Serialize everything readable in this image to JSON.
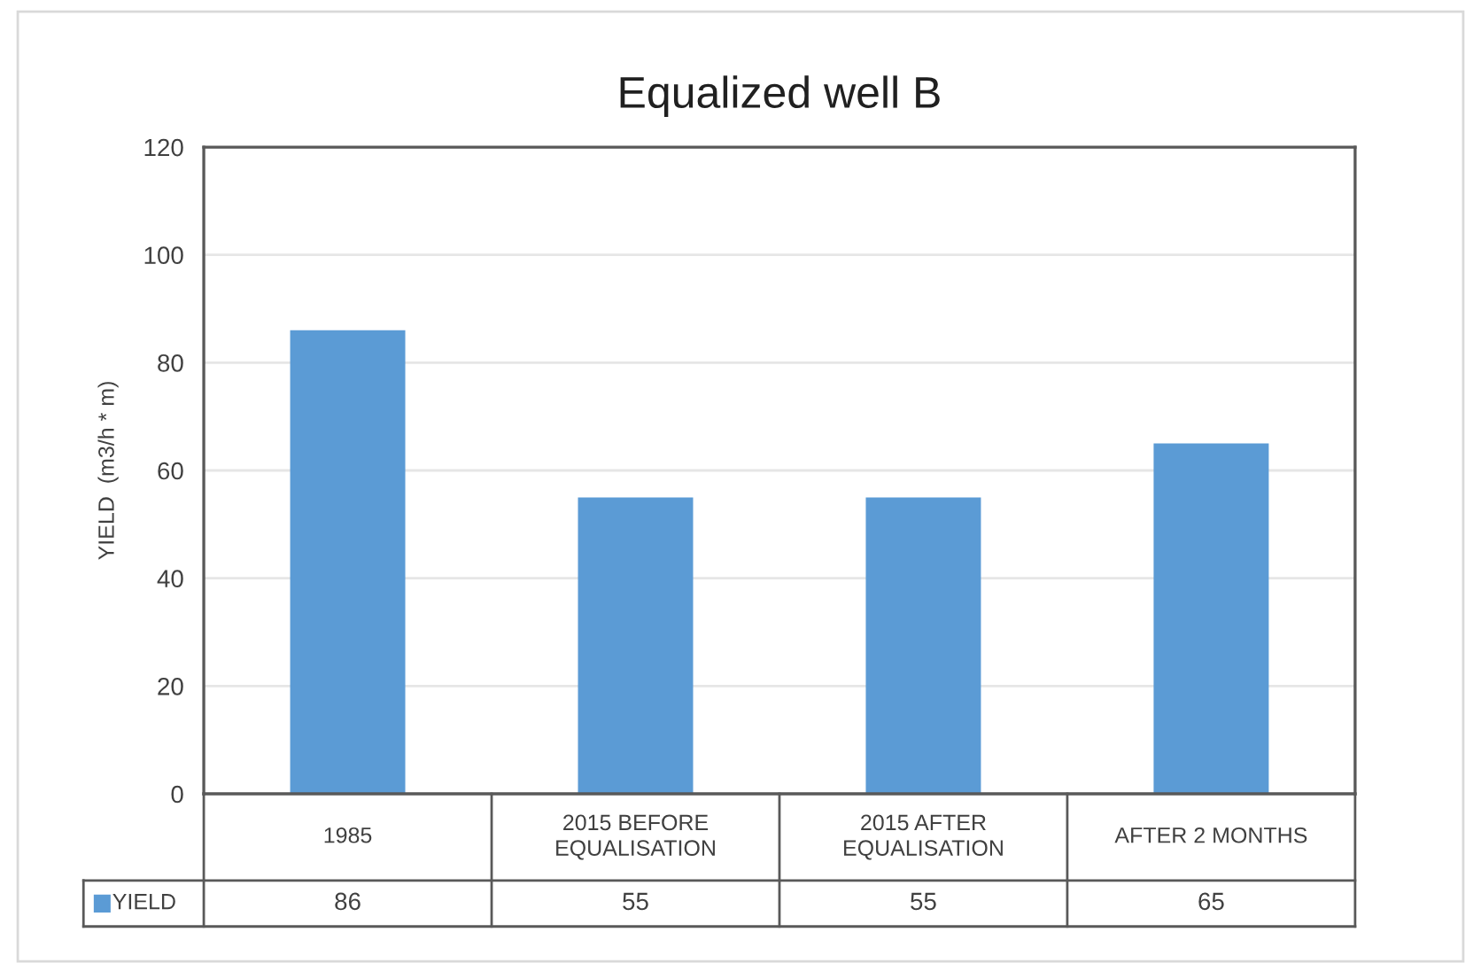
{
  "chart_data": {
    "type": "bar",
    "title": "Equalized well B",
    "ylabel": "YIELD  (m3/h * m)",
    "categories": [
      "1985",
      "2015 BEFORE EQUALISATION",
      "2015 AFTER EQUALISATION",
      "AFTER 2 MONTHS"
    ],
    "series": [
      {
        "name": "YIELD",
        "color": "#5b9bd5",
        "values": [
          86,
          55,
          55,
          65
        ]
      }
    ],
    "ylim": [
      0,
      120
    ],
    "yticks": [
      0,
      20,
      40,
      60,
      80,
      100,
      120
    ],
    "grid": "y",
    "data_labels": true
  }
}
